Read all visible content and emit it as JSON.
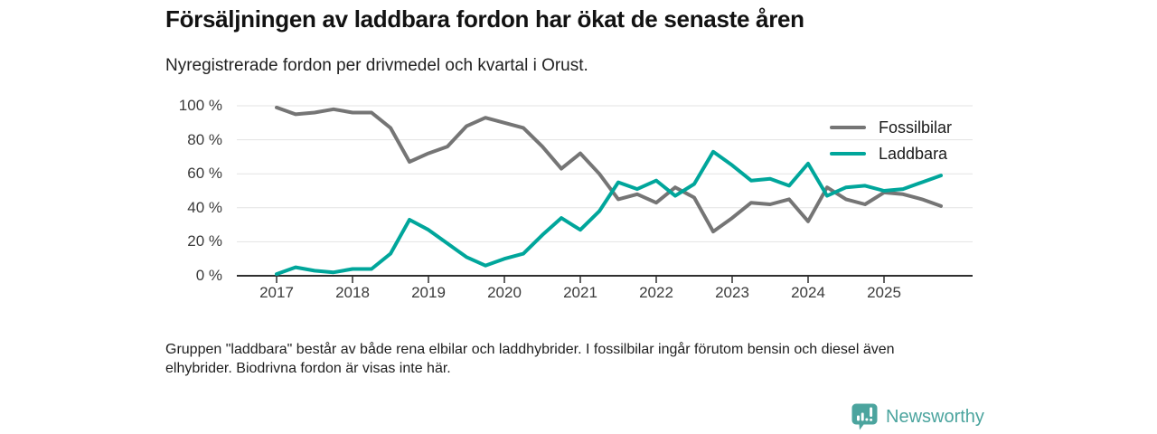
{
  "header": {
    "title": "Försäljningen av laddbara fordon har ökat de senaste åren",
    "subtitle": "Nyregistrerade fordon per drivmedel och kvartal i Orust."
  },
  "chart_data": {
    "type": "line",
    "title": "Försäljningen av laddbara fordon har ökat de senaste åren",
    "subtitle": "Nyregistrerade fordon per drivmedel och kvartal i Orust.",
    "unit": "%",
    "ylim": [
      0,
      100
    ],
    "grid": "horizontal",
    "legend_position": "top-right-inside",
    "y_tick_values": [
      0,
      20,
      40,
      60,
      80,
      100
    ],
    "y_tick_labels": [
      "0 %",
      "20 %",
      "40 %",
      "60 %",
      "80 %",
      "100 %"
    ],
    "x_tick_labels": [
      "2017",
      "2018",
      "2019",
      "2020",
      "2021",
      "2022",
      "2023",
      "2024",
      "2025"
    ],
    "categories": [
      "2017 K1",
      "2017 K2",
      "2017 K3",
      "2017 K4",
      "2018 K1",
      "2018 K2",
      "2018 K3",
      "2018 K4",
      "2019 K1",
      "2019 K2",
      "2019 K3",
      "2019 K4",
      "2020 K1",
      "2020 K2",
      "2020 K3",
      "2020 K4",
      "2021 K1",
      "2021 K2",
      "2021 K3",
      "2021 K4",
      "2022 K1",
      "2022 K2",
      "2022 K3",
      "2022 K4",
      "2023 K1",
      "2023 K2",
      "2023 K3",
      "2023 K4",
      "2024 K1",
      "2024 K2",
      "2024 K3",
      "2024 K4",
      "2025 K1",
      "2025 K2",
      "2025 K3",
      "2025 K4"
    ],
    "series": [
      {
        "name": "Fossilbilar",
        "color": "#757575",
        "values": [
          99,
          95,
          96,
          98,
          96,
          96,
          87,
          67,
          72,
          76,
          88,
          93,
          90,
          87,
          76,
          63,
          72,
          60,
          45,
          48,
          43,
          52,
          46,
          26,
          34,
          43,
          42,
          45,
          32,
          52,
          45,
          42,
          49,
          48,
          45,
          41
        ]
      },
      {
        "name": "Laddbara",
        "color": "#00A69B",
        "values": [
          1,
          5,
          3,
          2,
          4,
          4,
          13,
          33,
          27,
          19,
          11,
          6,
          10,
          13,
          24,
          34,
          27,
          38,
          55,
          51,
          56,
          47,
          54,
          73,
          65,
          56,
          57,
          53,
          66,
          47,
          52,
          53,
          50,
          51,
          55,
          59
        ]
      }
    ],
    "axis_color": "#2f2f2f",
    "gridline_color": "#e3e3e3"
  },
  "footer": {
    "note": "Gruppen \"laddbara\" består av både rena elbilar och laddhybrider. I fossilbilar ingår förutom bensin och diesel även elhybrider. Biodrivna fordon är visas inte här."
  },
  "branding": {
    "name": "Newsworthy",
    "icon": "newsworthy-speech-bubble-chart-icon",
    "color": "#4BA49E"
  }
}
